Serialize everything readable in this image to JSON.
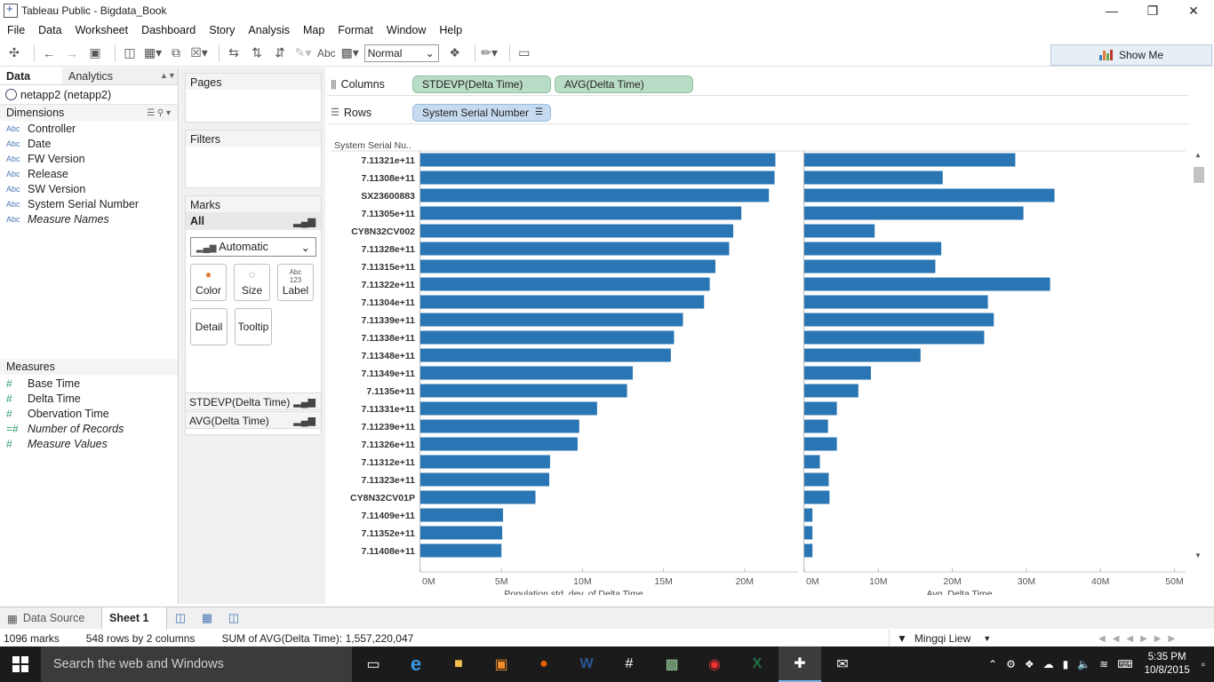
{
  "window": {
    "title": "Tableau Public - Bigdata_Book"
  },
  "menu": [
    "File",
    "Data",
    "Worksheet",
    "Dashboard",
    "Story",
    "Analysis",
    "Map",
    "Format",
    "Window",
    "Help"
  ],
  "toolbar": {
    "abc_label": "Abc",
    "fit_value": "Normal",
    "show_me_label": "Show Me"
  },
  "data_pane": {
    "tabs": [
      "Data",
      "Analytics"
    ],
    "datasource": "netapp2 (netapp2)",
    "dimensions_header": "Dimensions",
    "dimensions": [
      {
        "type": "Abc",
        "name": "Controller",
        "italic": false
      },
      {
        "type": "Abc",
        "name": "Date",
        "italic": false
      },
      {
        "type": "Abc",
        "name": "FW Version",
        "italic": false
      },
      {
        "type": "Abc",
        "name": "Release",
        "italic": false
      },
      {
        "type": "Abc",
        "name": "SW Version",
        "italic": false
      },
      {
        "type": "Abc",
        "name": "System Serial Number",
        "italic": false
      },
      {
        "type": "Abc",
        "name": "Measure Names",
        "italic": true
      }
    ],
    "measures_header": "Measures",
    "measures": [
      {
        "type": "#",
        "name": "Base Time",
        "italic": false
      },
      {
        "type": "#",
        "name": "Delta Time",
        "italic": false
      },
      {
        "type": "#",
        "name": "Obervation Time",
        "italic": false
      },
      {
        "type": "=#",
        "name": "Number of Records",
        "italic": true
      },
      {
        "type": "#",
        "name": "Measure Values",
        "italic": true
      }
    ]
  },
  "cards": {
    "pages": "Pages",
    "filters": "Filters",
    "marks": "Marks",
    "marks_all": "All",
    "mark_type": "Automatic",
    "mark_buttons": [
      "Color",
      "Size",
      "Label",
      "Detail",
      "Tooltip"
    ],
    "label_glyph": "Abc 123",
    "mark_tabs": [
      "STDEVP(Delta Time)",
      "AVG(Delta Time)"
    ]
  },
  "shelves": {
    "columns_label": "Columns",
    "columns_pills": [
      "STDEVP(Delta Time)",
      "AVG(Delta Time)"
    ],
    "rows_label": "Rows",
    "rows_pills": [
      "System Serial Number"
    ]
  },
  "chart_data": {
    "type": "bar",
    "orientation": "horizontal",
    "row_header": "System Serial Nu..",
    "categories": [
      "7.11321e+11",
      "7.11308e+11",
      "SX23600883",
      "7.11305e+11",
      "CY8N32CV002",
      "7.11328e+11",
      "7.11315e+11",
      "7.11322e+11",
      "7.11304e+11",
      "7.11339e+11",
      "7.11338e+11",
      "7.11348e+11",
      "7.11349e+11",
      "7.1135e+11",
      "7.11331e+11",
      "7.11239e+11",
      "7.11326e+11",
      "7.11312e+11",
      "7.11323e+11",
      "CY8N32CV01P",
      "7.11409e+11",
      "7.11352e+11",
      "7.11408e+11"
    ],
    "series": [
      {
        "name": "Population std. dev. of Delta Time",
        "values": [
          21.9,
          21.85,
          21.5,
          19.8,
          19.3,
          19.05,
          18.2,
          17.85,
          17.5,
          16.2,
          15.65,
          15.45,
          13.1,
          12.75,
          10.9,
          9.8,
          9.7,
          8.0,
          7.95,
          7.1,
          5.1,
          5.05,
          5.0
        ],
        "ticks": [
          "0M",
          "5M",
          "10M",
          "15M",
          "20M"
        ],
        "xlim": [
          0,
          23.3
        ],
        "xlabel": "Population std. dev. of Delta Time"
      },
      {
        "name": "Avg. Delta Time",
        "values": [
          28.5,
          18.7,
          33.8,
          29.6,
          9.5,
          18.5,
          17.7,
          33.2,
          24.8,
          25.6,
          24.3,
          15.7,
          9.0,
          7.3,
          4.4,
          3.2,
          4.4,
          2.1,
          3.3,
          3.4,
          1.1,
          1.1,
          1.1
        ],
        "ticks": [
          "0M",
          "10M",
          "20M",
          "30M",
          "40M",
          "50M"
        ],
        "xlim": [
          0,
          51.5
        ],
        "xlabel": "Avg. Delta Time"
      }
    ],
    "bar_color": "#2a75b3",
    "grid": false
  },
  "sheet_tabs": {
    "datasource_tab": "Data Source",
    "active_sheet": "Sheet 1"
  },
  "status": {
    "marks": "1096 marks",
    "rows_cols": "548 rows by 2 columns",
    "sum": "SUM of AVG(Delta Time): 1,557,220,047",
    "user": "Mingqi Liew"
  },
  "taskbar": {
    "search_placeholder": "Search the web and Windows",
    "clock_time": "5:35 PM",
    "clock_date": "10/8/2015"
  }
}
